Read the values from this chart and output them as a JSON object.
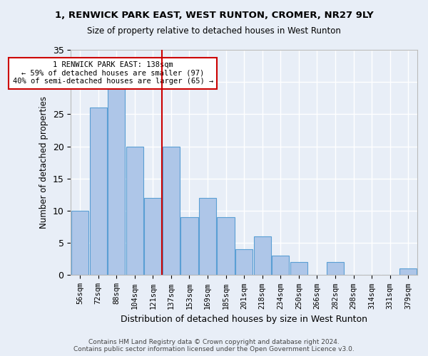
{
  "title": "1, RENWICK PARK EAST, WEST RUNTON, CROMER, NR27 9LY",
  "subtitle": "Size of property relative to detached houses in West Runton",
  "xlabel": "Distribution of detached houses by size in West Runton",
  "ylabel": "Number of detached properties",
  "bar_values": [
    10,
    26,
    29,
    20,
    12,
    20,
    9,
    12,
    9,
    4,
    6,
    3,
    2,
    0,
    2,
    0,
    0,
    0,
    1
  ],
  "bin_labels": [
    "56sqm",
    "72sqm",
    "88sqm",
    "104sqm",
    "121sqm",
    "137sqm",
    "153sqm",
    "169sqm",
    "185sqm",
    "201sqm",
    "218sqm",
    "234sqm",
    "250sqm",
    "266sqm",
    "282sqm",
    "298sqm",
    "314sqm",
    "331sqm",
    "379sqm"
  ],
  "bar_color": "#aec6e8",
  "bar_edge_color": "#5a9fd4",
  "vline_x_index": 5,
  "vline_color": "#cc0000",
  "annotation_text": "1 RENWICK PARK EAST: 138sqm\n← 59% of detached houses are smaller (97)\n40% of semi-detached houses are larger (65) →",
  "annotation_box_color": "#ffffff",
  "annotation_box_edge": "#cc0000",
  "ylim": [
    0,
    35
  ],
  "yticks": [
    0,
    5,
    10,
    15,
    20,
    25,
    30,
    35
  ],
  "footer": "Contains HM Land Registry data © Crown copyright and database right 2024.\nContains public sector information licensed under the Open Government Licence v3.0.",
  "bg_color": "#e8eef7",
  "plot_bg_color": "#e8eef7",
  "grid_color": "#ffffff"
}
